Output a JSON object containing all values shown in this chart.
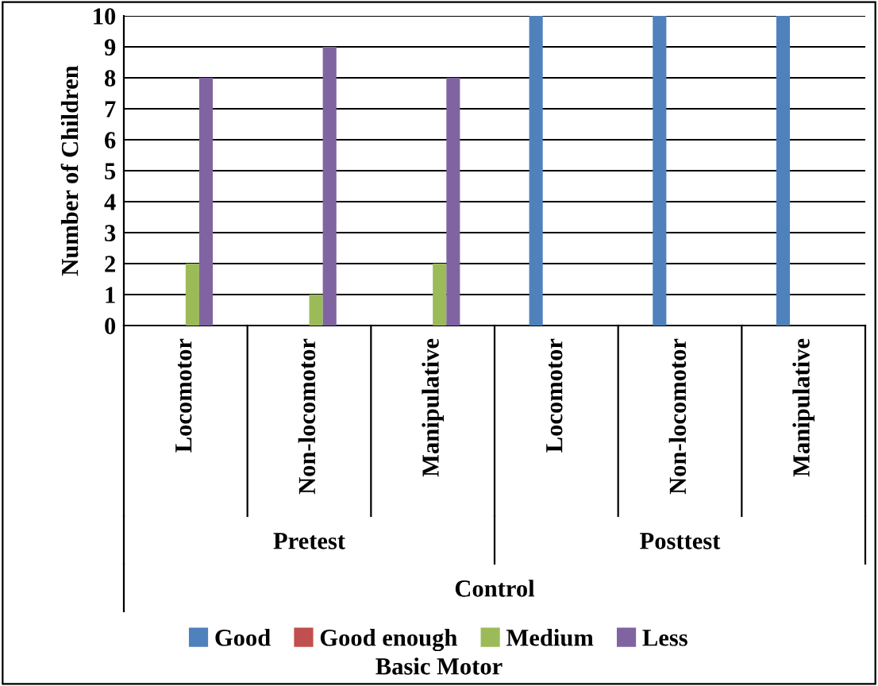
{
  "chart_data": {
    "type": "bar",
    "ylabel": "Number of Children",
    "categories": [
      "Locomotor",
      "Non-locomotor",
      "Manipulative",
      "Locomotor",
      "Non-locomotor",
      "Manipulative"
    ],
    "series": [
      {
        "name": "Good",
        "color": "#4f81bd",
        "values": [
          null,
          null,
          null,
          10,
          10,
          10
        ]
      },
      {
        "name": "Good enough",
        "color": "#c0504d",
        "values": [
          null,
          null,
          null,
          null,
          null,
          null
        ]
      },
      {
        "name": "Medium",
        "color": "#9bbb59",
        "values": [
          2,
          1,
          2,
          null,
          null,
          null
        ]
      },
      {
        "name": "Less",
        "color": "#8064a2",
        "values": [
          8,
          9,
          8,
          null,
          null,
          null
        ]
      }
    ],
    "annotations": [
      "Pretest",
      "Posttest",
      "Control",
      "Basic Motor"
    ],
    "ylim": [
      0,
      10
    ],
    "yticks": [
      0,
      1,
      2,
      3,
      4,
      5,
      6,
      7,
      8,
      9,
      10
    ],
    "grid": "y",
    "legend": "bottom"
  }
}
